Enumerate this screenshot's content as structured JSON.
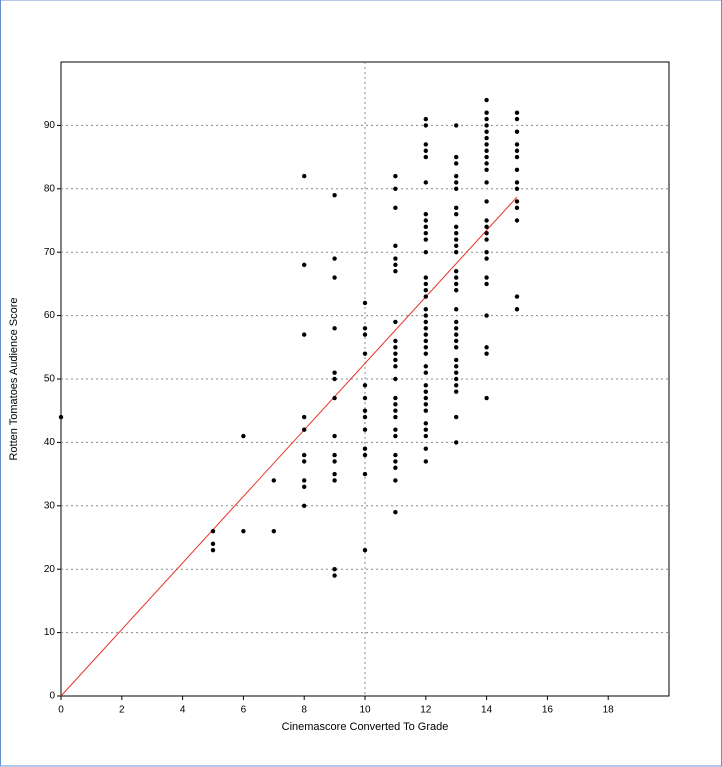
{
  "chart_data": {
    "type": "scatter",
    "x_label": "Cinemascore Converted To Grade",
    "y_label": "Rotten Tomatoes Audience Score",
    "xlim": [
      0,
      20
    ],
    "xticks": [
      0,
      2,
      4,
      6,
      8,
      10,
      12,
      14,
      16,
      18
    ],
    "ylim": [
      0,
      100
    ],
    "yticks": [
      0,
      10,
      20,
      30,
      40,
      50,
      60,
      70,
      80,
      90
    ],
    "grid": true,
    "xref": 10,
    "series": [
      {
        "color": "#000000",
        "x": [
          0,
          5,
          5,
          5,
          6,
          6,
          7,
          7,
          8,
          8,
          8,
          8,
          8,
          8,
          8,
          8,
          8,
          8,
          9,
          9,
          9,
          9,
          9,
          9,
          9,
          9,
          9,
          9,
          9,
          9,
          9,
          9,
          10,
          10,
          10,
          10,
          10,
          10,
          10,
          10,
          10,
          10,
          10,
          10,
          10,
          11,
          11,
          11,
          11,
          11,
          11,
          11,
          11,
          11,
          11,
          11,
          11,
          11,
          11,
          11,
          11,
          11,
          11,
          11,
          11,
          11,
          11,
          11,
          11,
          11,
          12,
          12,
          12,
          12,
          12,
          12,
          12,
          12,
          12,
          12,
          12,
          12,
          12,
          12,
          12,
          12,
          12,
          12,
          12,
          12,
          12,
          12,
          12,
          12,
          12,
          12,
          12,
          12,
          12,
          12,
          12,
          12,
          12,
          12,
          12,
          12,
          13,
          13,
          13,
          13,
          13,
          13,
          13,
          13,
          13,
          13,
          13,
          13,
          13,
          13,
          13,
          13,
          13,
          13,
          13,
          13,
          13,
          13,
          13,
          13,
          13,
          13,
          13,
          13,
          13,
          13,
          13,
          14,
          14,
          14,
          14,
          14,
          14,
          14,
          14,
          14,
          14,
          14,
          14,
          14,
          14,
          14,
          14,
          14,
          14,
          14,
          14,
          14,
          14,
          14,
          14,
          14,
          15,
          15,
          15,
          15,
          15,
          15,
          15,
          15,
          15,
          15,
          15,
          15,
          15,
          15
        ],
        "values": [
          44,
          26,
          24,
          23,
          41,
          26,
          34,
          26,
          82,
          68,
          57,
          44,
          42,
          38,
          37,
          34,
          33,
          30,
          79,
          69,
          66,
          58,
          51,
          50,
          47,
          41,
          38,
          37,
          35,
          34,
          20,
          19,
          62,
          58,
          57,
          54,
          49,
          47,
          45,
          44,
          42,
          39,
          38,
          35,
          23,
          82,
          80,
          77,
          71,
          69,
          68,
          67,
          59,
          56,
          55,
          54,
          53,
          52,
          50,
          47,
          46,
          45,
          44,
          42,
          41,
          38,
          37,
          36,
          34,
          29,
          91,
          90,
          87,
          86,
          85,
          81,
          76,
          75,
          74,
          73,
          72,
          70,
          66,
          65,
          64,
          63,
          61,
          60,
          59,
          58,
          57,
          56,
          55,
          54,
          52,
          51,
          49,
          48,
          47,
          46,
          45,
          43,
          42,
          41,
          39,
          37,
          90,
          85,
          84,
          82,
          81,
          80,
          77,
          76,
          74,
          73,
          72,
          71,
          70,
          67,
          66,
          65,
          64,
          61,
          59,
          58,
          57,
          56,
          55,
          53,
          52,
          51,
          50,
          49,
          48,
          44,
          40,
          94,
          92,
          91,
          90,
          89,
          88,
          87,
          86,
          85,
          84,
          83,
          81,
          78,
          75,
          74,
          73,
          72,
          70,
          69,
          66,
          65,
          60,
          55,
          54,
          47,
          92,
          91,
          89,
          87,
          86,
          85,
          83,
          81,
          80,
          78,
          77,
          75,
          63,
          61
        ]
      }
    ],
    "fit_line": {
      "color": "#e8302a",
      "x": [
        0,
        15
      ],
      "values": [
        0,
        78.7
      ]
    }
  }
}
